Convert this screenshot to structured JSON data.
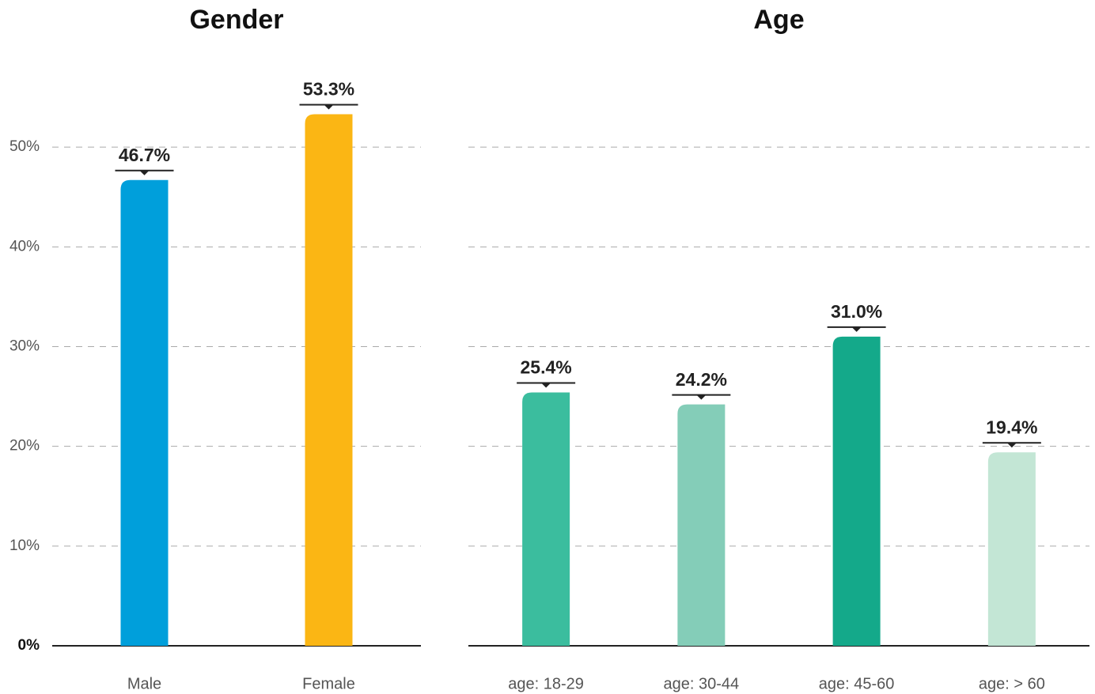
{
  "chart_data": [
    {
      "type": "bar",
      "title": "Gender",
      "categories": [
        "Male",
        "Female"
      ],
      "values": [
        46.7,
        53.3
      ],
      "value_labels": [
        "46.7%",
        "53.3%"
      ],
      "colors": [
        "#009fdb",
        "#fbb614"
      ],
      "ylim": [
        0,
        60
      ],
      "yticks": [
        {
          "value": 0,
          "label": "0%"
        },
        {
          "value": 10,
          "label": "10%"
        },
        {
          "value": 20,
          "label": "20%"
        },
        {
          "value": 30,
          "label": "30%"
        },
        {
          "value": 40,
          "label": "40%"
        },
        {
          "value": 50,
          "label": "50%"
        }
      ],
      "grid": true
    },
    {
      "type": "bar",
      "title": "Age",
      "categories": [
        "age: 18-29",
        "age: 30-44",
        "age: 45-60",
        "age: > 60"
      ],
      "values": [
        25.4,
        24.2,
        31.0,
        19.4
      ],
      "value_labels": [
        "25.4%",
        "24.2%",
        "31.0%",
        "19.4%"
      ],
      "colors": [
        "#3bbd9e",
        "#84cdb8",
        "#14a98a",
        "#c3e6d5"
      ],
      "ylim": [
        0,
        60
      ],
      "yticks": [
        0,
        10,
        20,
        30,
        40,
        50
      ],
      "show_tick_labels": false,
      "grid": true
    }
  ]
}
